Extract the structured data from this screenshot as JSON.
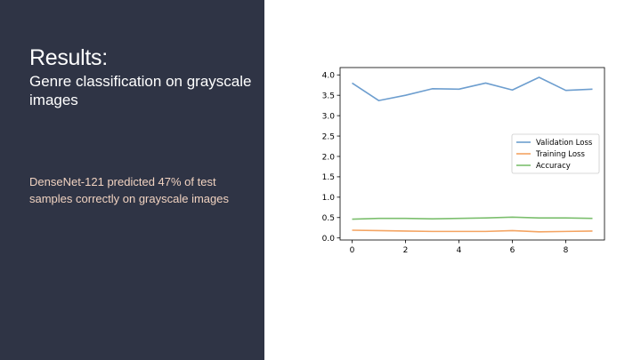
{
  "slide": {
    "title": "Results:",
    "subtitle": "Genre classification on grayscale images",
    "body": "DenseNet-121 predicted 47% of test samples correctly on grayscale images"
  },
  "colors": {
    "panel": "#2f3445",
    "title_text": "#ffffff",
    "body_text": "#f0d2c0"
  },
  "chart_data": {
    "type": "line",
    "title": "",
    "xlabel": "",
    "ylabel": "",
    "x": [
      0,
      1,
      2,
      3,
      4,
      5,
      6,
      7,
      8,
      9
    ],
    "xlim": [
      -0.45,
      9.45
    ],
    "ylim": [
      -0.05,
      4.18
    ],
    "xticks": [
      0,
      2,
      4,
      6,
      8
    ],
    "yticks": [
      0.0,
      0.5,
      1.0,
      1.5,
      2.0,
      2.5,
      3.0,
      3.5,
      4.0
    ],
    "ytick_labels": [
      "0.0",
      "0.5",
      "1.0",
      "1.5",
      "2.0",
      "2.5",
      "3.0",
      "3.5",
      "4.0"
    ],
    "grid": false,
    "legend_position": "center-right",
    "series": [
      {
        "name": "Validation Loss",
        "color": "#6d9ecf",
        "values": [
          3.8,
          3.37,
          3.5,
          3.66,
          3.65,
          3.8,
          3.63,
          3.94,
          3.62,
          3.65
        ]
      },
      {
        "name": "Training Loss",
        "color": "#f4a462",
        "values": [
          0.19,
          0.18,
          0.17,
          0.16,
          0.16,
          0.16,
          0.18,
          0.15,
          0.16,
          0.17
        ]
      },
      {
        "name": "Accuracy",
        "color": "#7cbf6e",
        "values": [
          0.46,
          0.48,
          0.48,
          0.47,
          0.48,
          0.49,
          0.51,
          0.49,
          0.49,
          0.48
        ]
      }
    ]
  }
}
